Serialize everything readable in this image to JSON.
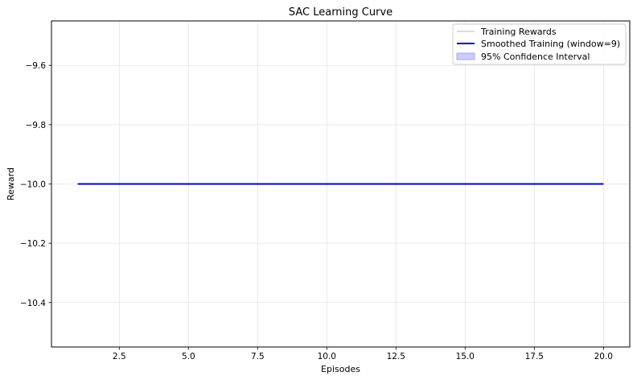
{
  "chart_data": {
    "type": "line",
    "title": "SAC Learning Curve",
    "xlabel": "Episodes",
    "ylabel": "Reward",
    "xlim": [
      0.05,
      20.95
    ],
    "ylim": [
      -10.55,
      -9.45
    ],
    "x_ticks": [
      2.5,
      5.0,
      7.5,
      10.0,
      12.5,
      15.0,
      17.5,
      20.0
    ],
    "x_tick_labels": [
      "2.5",
      "5.0",
      "7.5",
      "10.0",
      "12.5",
      "15.0",
      "17.5",
      "20.0"
    ],
    "y_ticks": [
      -9.6,
      -9.8,
      -10.0,
      -10.2,
      -10.4
    ],
    "y_tick_labels": [
      "−9.6",
      "−9.8",
      "−10.0",
      "−10.2",
      "−10.4"
    ],
    "grid": true,
    "legend_position": "top-right",
    "series": [
      {
        "name": "Training Rewards",
        "color": "#9999dd",
        "x": [
          1,
          2,
          3,
          4,
          5,
          6,
          7,
          8,
          9,
          10,
          11,
          12,
          13,
          14,
          15,
          16,
          17,
          18,
          19,
          20
        ],
        "values": [
          -10,
          -10,
          -10,
          -10,
          -10,
          -10,
          -10,
          -10,
          -10,
          -10,
          -10,
          -10,
          -10,
          -10,
          -10,
          -10,
          -10,
          -10,
          -10,
          -10
        ]
      },
      {
        "name": "Smoothed Training (window=9)",
        "color": "#0000cc",
        "x": [
          1,
          2,
          3,
          4,
          5,
          6,
          7,
          8,
          9,
          10,
          11,
          12,
          13,
          14,
          15,
          16,
          17,
          18,
          19,
          20
        ],
        "values": [
          -10,
          -10,
          -10,
          -10,
          -10,
          -10,
          -10,
          -10,
          -10,
          -10,
          -10,
          -10,
          -10,
          -10,
          -10,
          -10,
          -10,
          -10,
          -10,
          -10
        ]
      }
    ],
    "confidence_interval": {
      "name": "95% Confidence Interval",
      "color": "#ccccff",
      "x": [
        1,
        20
      ],
      "lower": [
        -10,
        -10
      ],
      "upper": [
        -10,
        -10
      ]
    }
  }
}
